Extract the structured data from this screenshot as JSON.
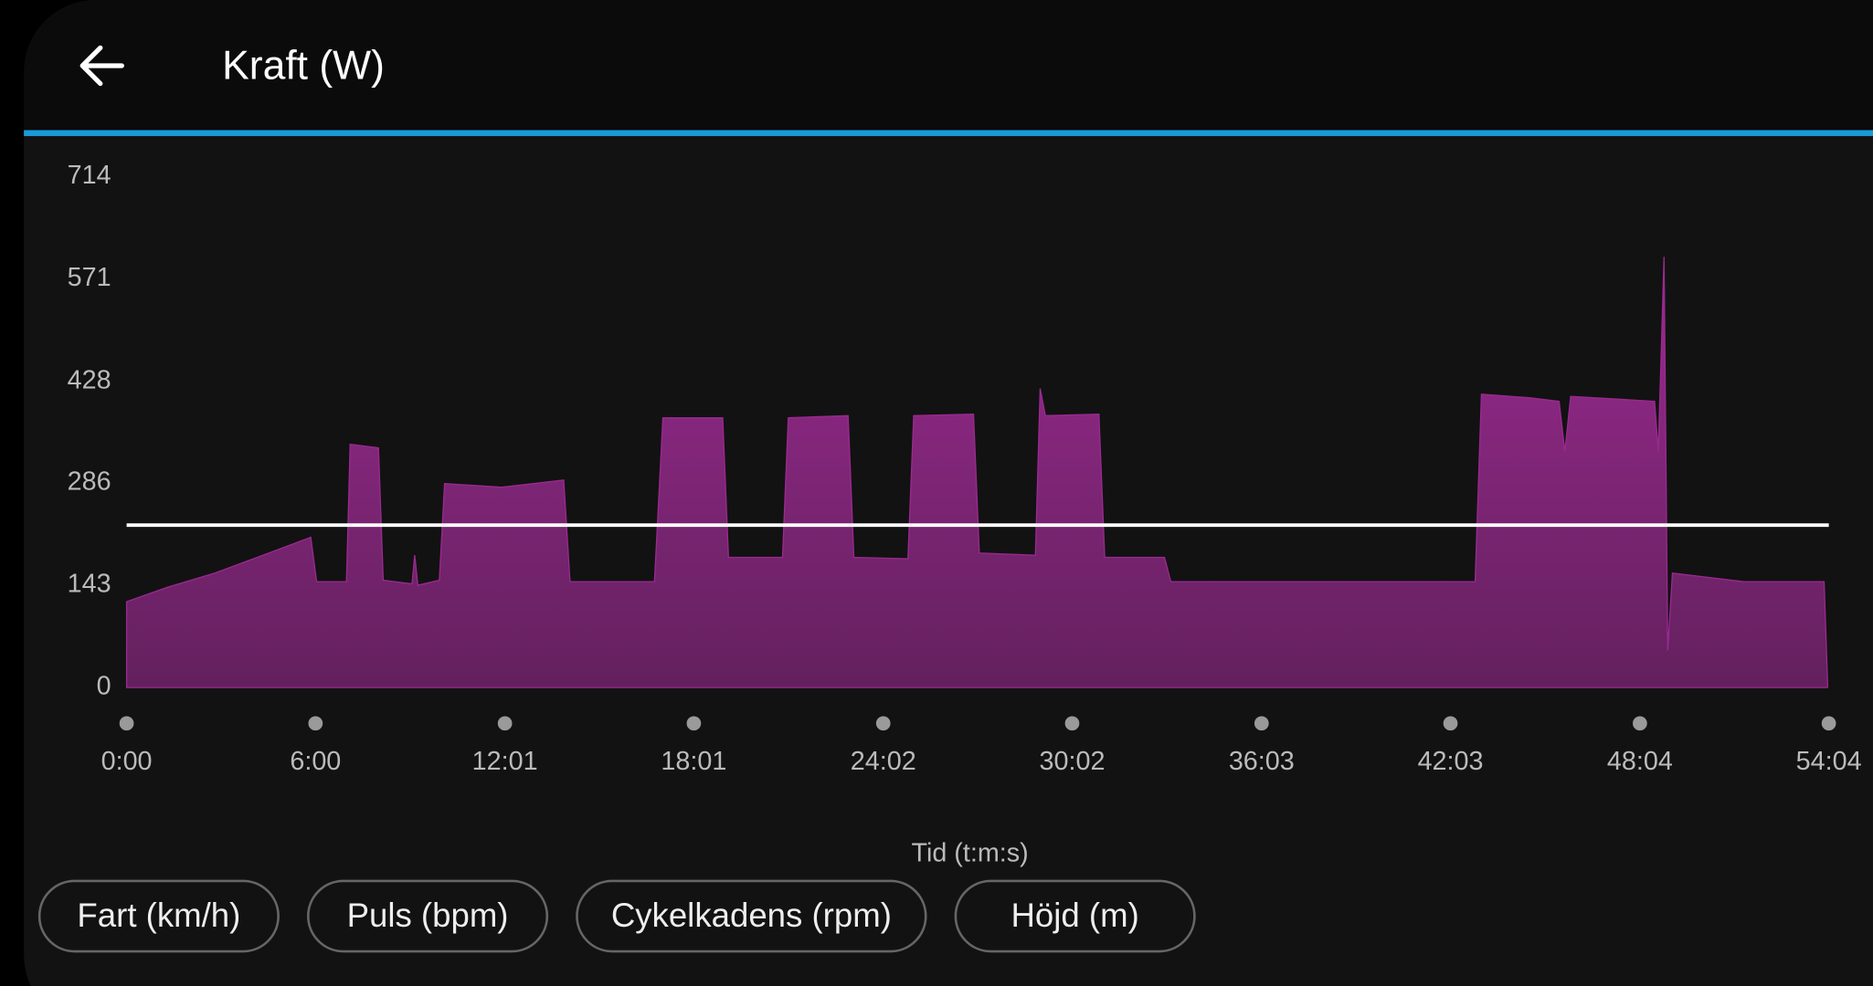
{
  "header": {
    "title": "Kraft (W)"
  },
  "chart_data": {
    "type": "area",
    "x": [
      0,
      77,
      168,
      260,
      351,
      362,
      419,
      426,
      480,
      489,
      544,
      549,
      555,
      596,
      606,
      715,
      833,
      845,
      1006,
      1022,
      1136,
      1147,
      1250,
      1261,
      1375,
      1386,
      1489,
      1500,
      1614,
      1625,
      1732,
      1741,
      1751,
      1853,
      1864,
      1978,
      1990,
      2570,
      2582,
      2673,
      2730,
      2741,
      2752,
      2912,
      2919,
      2930,
      2937,
      2946,
      3082,
      3235,
      3242
    ],
    "values": [
      120,
      140,
      160,
      185,
      210,
      148,
      148,
      340,
      335,
      150,
      145,
      185,
      143,
      150,
      285,
      280,
      290,
      148,
      148,
      377,
      377,
      182,
      182,
      377,
      380,
      182,
      180,
      380,
      382,
      188,
      185,
      418,
      380,
      382,
      182,
      182,
      148,
      148,
      410,
      405,
      400,
      330,
      407,
      400,
      330,
      602,
      52,
      160,
      148,
      148,
      0
    ],
    "color": "#9a2a90",
    "average": 227,
    "xlim": [
      0,
      3244
    ],
    "xticks": [
      {
        "value": 0,
        "label": "0:00"
      },
      {
        "value": 360,
        "label": "6:00"
      },
      {
        "value": 721,
        "label": "12:01"
      },
      {
        "value": 1081,
        "label": "18:01"
      },
      {
        "value": 1442,
        "label": "24:02"
      },
      {
        "value": 1802,
        "label": "30:02"
      },
      {
        "value": 2163,
        "label": "36:03"
      },
      {
        "value": 2523,
        "label": "42:03"
      },
      {
        "value": 2884,
        "label": "48:04"
      },
      {
        "value": 3244,
        "label": "54:04"
      }
    ],
    "ylim": [
      0,
      714
    ],
    "yticks": [
      0,
      143,
      286,
      428,
      571,
      714
    ],
    "x_label": "Tid (t:m:s)"
  },
  "buttons": [
    "Fart (km/h)",
    "Puls (bpm)",
    "Cykelkadens (rpm)",
    "Höjd (m)"
  ]
}
